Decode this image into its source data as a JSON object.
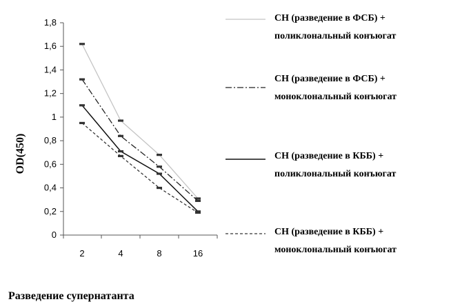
{
  "chart_data": {
    "type": "line",
    "title": "",
    "xlabel": "Разведение супернатанта",
    "ylabel": "OD(450)",
    "categories": [
      "2",
      "4",
      "8",
      "16"
    ],
    "ylim": [
      0,
      1.8
    ],
    "yticks": [
      "0",
      "0,2",
      "0,4",
      "0,6",
      "0,8",
      "1",
      "1,2",
      "1,4",
      "1,6",
      "1,8"
    ],
    "grid": false,
    "legend_position": "right",
    "series": [
      {
        "name_line1": "СН (разведение в ФСБ) +",
        "name_line2": "поликлональный конъюгат",
        "style": "solid-light",
        "color": "#c4c4c4",
        "values": [
          1.62,
          0.97,
          0.68,
          0.31
        ]
      },
      {
        "name_line1": "СН (разведение в ФСБ) +",
        "name_line2": "моноклональный конъюгат",
        "style": "dash-dot",
        "color": "#222222",
        "values": [
          1.32,
          0.84,
          0.58,
          0.29
        ]
      },
      {
        "name_line1": "СН (разведение в КББ) +",
        "name_line2": "поликлональный конъюгат",
        "style": "solid",
        "color": "#111111",
        "values": [
          1.1,
          0.71,
          0.52,
          0.2
        ]
      },
      {
        "name_line1": "СН (разведение в КББ) +",
        "name_line2": "моноклональный конъюгат",
        "style": "dashed",
        "color": "#333333",
        "values": [
          0.95,
          0.67,
          0.4,
          0.19
        ]
      }
    ]
  }
}
